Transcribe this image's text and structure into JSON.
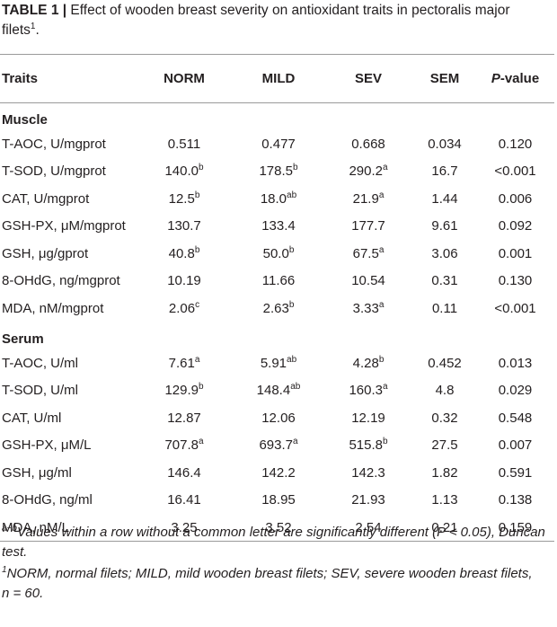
{
  "caption": {
    "lead": "TABLE 1 |",
    "text": "Effect of wooden breast severity on antioxidant traits in pectoralis major filets",
    "sup": "1",
    "end": "."
  },
  "header": {
    "traits": "Traits",
    "norm": "NORM",
    "mild": "MILD",
    "sev": "SEV",
    "sem": "SEM",
    "p_italic": "P",
    "p_rest": "-value"
  },
  "sections": [
    {
      "title": "Muscle",
      "rows": [
        {
          "trait": "T-AOC, U/mgprot",
          "norm": "0.511",
          "norm_sup": "",
          "mild": "0.477",
          "mild_sup": "",
          "sev": "0.668",
          "sev_sup": "",
          "sem": "0.034",
          "p": "0.120"
        },
        {
          "trait": "T-SOD, U/mgprot",
          "norm": "140.0",
          "norm_sup": "b",
          "mild": "178.5",
          "mild_sup": "b",
          "sev": "290.2",
          "sev_sup": "a",
          "sem": "16.7",
          "p": "<0.001"
        },
        {
          "trait": "CAT, U/mgprot",
          "norm": "12.5",
          "norm_sup": "b",
          "mild": "18.0",
          "mild_sup": "ab",
          "sev": "21.9",
          "sev_sup": "a",
          "sem": "1.44",
          "p": "0.006"
        },
        {
          "trait": "GSH-PX, μM/mgprot",
          "norm": "130.7",
          "norm_sup": "",
          "mild": "133.4",
          "mild_sup": "",
          "sev": "177.7",
          "sev_sup": "",
          "sem": "9.61",
          "p": "0.092"
        },
        {
          "trait": "GSH, μg/gprot",
          "norm": "40.8",
          "norm_sup": "b",
          "mild": "50.0",
          "mild_sup": "b",
          "sev": "67.5",
          "sev_sup": "a",
          "sem": "3.06",
          "p": "0.001"
        },
        {
          "trait": "8-OHdG, ng/mgprot",
          "norm": "10.19",
          "norm_sup": "",
          "mild": "11.66",
          "mild_sup": "",
          "sev": "10.54",
          "sev_sup": "",
          "sem": "0.31",
          "p": "0.130"
        },
        {
          "trait": "MDA, nM/mgprot",
          "norm": "2.06",
          "norm_sup": "c",
          "mild": "2.63",
          "mild_sup": "b",
          "sev": "3.33",
          "sev_sup": "a",
          "sem": "0.11",
          "p": "<0.001"
        }
      ]
    },
    {
      "title": "Serum",
      "rows": [
        {
          "trait": "T-AOC, U/ml",
          "norm": "7.61",
          "norm_sup": "a",
          "mild": "5.91",
          "mild_sup": "ab",
          "sev": "4.28",
          "sev_sup": "b",
          "sem": "0.452",
          "p": "0.013"
        },
        {
          "trait": "T-SOD, U/ml",
          "norm": "129.9",
          "norm_sup": "b",
          "mild": "148.4",
          "mild_sup": "ab",
          "sev": "160.3",
          "sev_sup": "a",
          "sem": "4.8",
          "p": "0.029"
        },
        {
          "trait": "CAT, U/ml",
          "norm": "12.87",
          "norm_sup": "",
          "mild": "12.06",
          "mild_sup": "",
          "sev": "12.19",
          "sev_sup": "",
          "sem": "0.32",
          "p": "0.548"
        },
        {
          "trait": "GSH-PX, μM/L",
          "norm": "707.8",
          "norm_sup": "a",
          "mild": "693.7",
          "mild_sup": "a",
          "sev": "515.8",
          "sev_sup": "b",
          "sem": "27.5",
          "p": "0.007"
        },
        {
          "trait": "GSH, μg/ml",
          "norm": "146.4",
          "norm_sup": "",
          "mild": "142.2",
          "mild_sup": "",
          "sev": "142.3",
          "sev_sup": "",
          "sem": "1.82",
          "p": "0.591"
        },
        {
          "trait": "8-OHdG, ng/ml",
          "norm": "16.41",
          "norm_sup": "",
          "mild": "18.95",
          "mild_sup": "",
          "sev": "21.93",
          "sev_sup": "",
          "sem": "1.13",
          "p": "0.138"
        },
        {
          "trait": "MDA, nM/L",
          "norm": "3.25",
          "norm_sup": "",
          "mild": "3.52",
          "mild_sup": "",
          "sev": "2.54",
          "sev_sup": "",
          "sem": "0.21",
          "p": "0.159"
        }
      ]
    }
  ],
  "footnotes": {
    "f1_sup": "a−b",
    "f1_text": "Values within a row without a common letter are significantly different (P < 0.05), Duncan test.",
    "f2_sup": "1",
    "f2_text": "NORM, normal filets; MILD, mild wooden breast filets; SEV, severe wooden breast filets,",
    "f2_n": "n = 60."
  }
}
